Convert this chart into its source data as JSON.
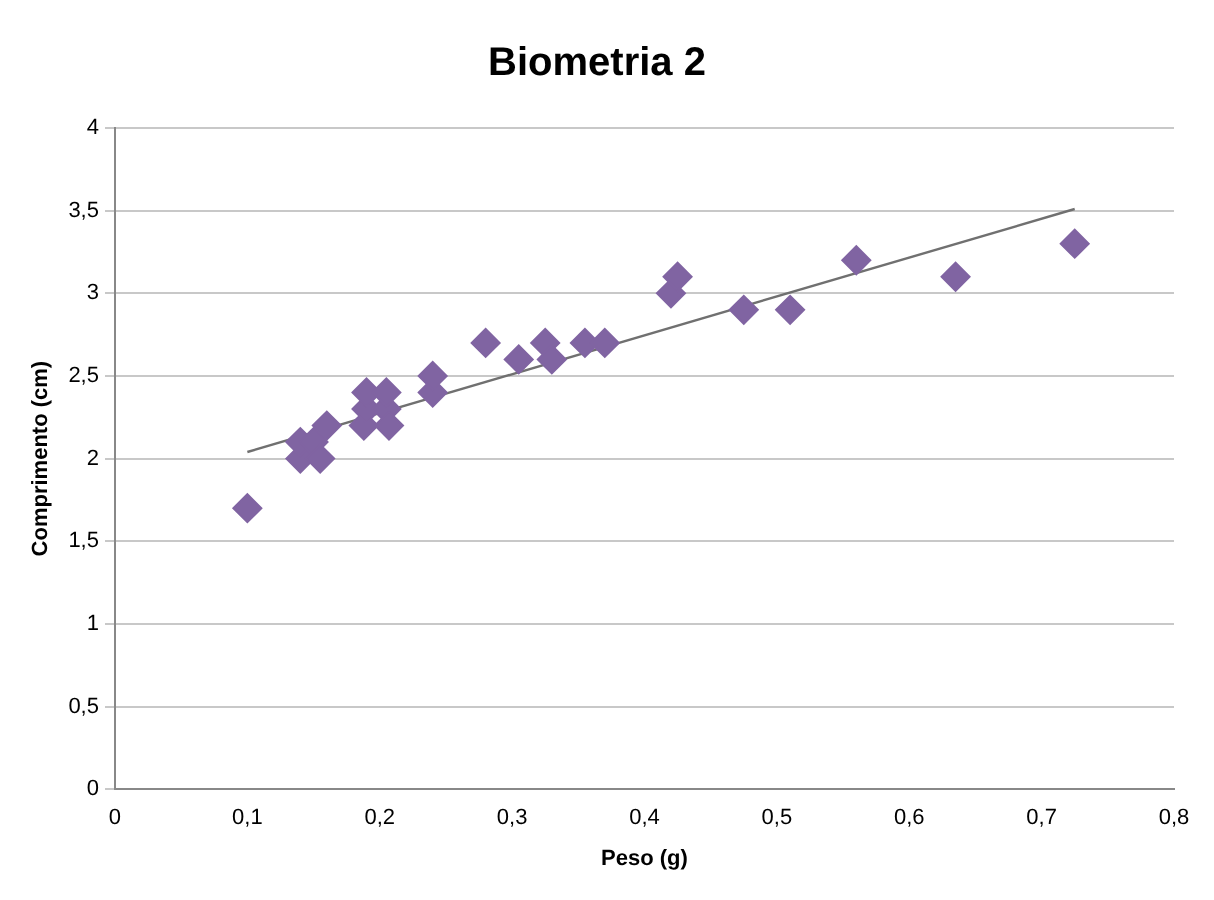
{
  "chart_data": {
    "type": "scatter",
    "title": "Biometria 2",
    "xlabel": "Peso (g)",
    "ylabel": "Comprimento (cm)",
    "xlim": [
      0,
      0.8
    ],
    "xticks": [
      {
        "value": 0,
        "label": "0"
      },
      {
        "value": 0.1,
        "label": "0,1"
      },
      {
        "value": 0.2,
        "label": "0,2"
      },
      {
        "value": 0.3,
        "label": "0,3"
      },
      {
        "value": 0.4,
        "label": "0,4"
      },
      {
        "value": 0.5,
        "label": "0,5"
      },
      {
        "value": 0.6,
        "label": "0,6"
      },
      {
        "value": 0.7,
        "label": "0,7"
      },
      {
        "value": 0.8,
        "label": "0,8"
      }
    ],
    "ylim": [
      0,
      4
    ],
    "yticks": [
      {
        "value": 0,
        "label": "0"
      },
      {
        "value": 0.5,
        "label": "0,5"
      },
      {
        "value": 1,
        "label": "1"
      },
      {
        "value": 1.5,
        "label": "1,5"
      },
      {
        "value": 2,
        "label": "2"
      },
      {
        "value": 2.5,
        "label": "2,5"
      },
      {
        "value": 3,
        "label": "3"
      },
      {
        "value": 3.5,
        "label": "3,5"
      },
      {
        "value": 4,
        "label": "4"
      }
    ],
    "grid": "y",
    "legend": false,
    "series": [
      {
        "marker": "diamond",
        "color": "#8064a2",
        "x": [
          0.1,
          0.14,
          0.14,
          0.15,
          0.155,
          0.16,
          0.188,
          0.19,
          0.19,
          0.205,
          0.205,
          0.207,
          0.24,
          0.24,
          0.28,
          0.305,
          0.325,
          0.33,
          0.355,
          0.37,
          0.42,
          0.425,
          0.475,
          0.51,
          0.56,
          0.635,
          0.725
        ],
        "values": [
          1.7,
          2.0,
          2.1,
          2.1,
          2.0,
          2.2,
          2.2,
          2.3,
          2.4,
          2.3,
          2.4,
          2.2,
          2.4,
          2.5,
          2.7,
          2.6,
          2.7,
          2.6,
          2.7,
          2.7,
          3.0,
          3.1,
          2.9,
          2.9,
          3.2,
          3.1,
          3.3
        ]
      },
      {
        "type": "line",
        "marker": "none",
        "color": "#707070",
        "x": [
          0.1,
          0.725
        ],
        "values": [
          2.04,
          3.51
        ]
      }
    ]
  }
}
